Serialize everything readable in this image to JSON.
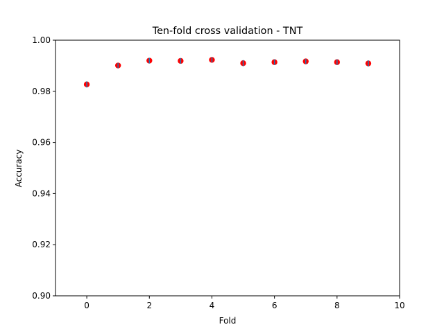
{
  "chart_data": {
    "type": "scatter",
    "title": "Ten-fold cross validation - TNT",
    "xlabel": "Fold",
    "ylabel": "Accuracy",
    "xlim": [
      -1,
      10
    ],
    "ylim": [
      0.9,
      1.0
    ],
    "xticks": [
      0,
      2,
      4,
      6,
      8,
      10
    ],
    "yticks": [
      0.9,
      0.92,
      0.94,
      0.96,
      0.98,
      1.0
    ],
    "xtick_labels": [
      "0",
      "2",
      "4",
      "6",
      "8",
      "10"
    ],
    "ytick_labels": [
      "0.90",
      "0.92",
      "0.94",
      "0.96",
      "0.98",
      "1.00"
    ],
    "x": [
      0,
      1,
      2,
      3,
      4,
      5,
      6,
      7,
      8,
      9
    ],
    "y": [
      0.9827,
      0.9901,
      0.992,
      0.9919,
      0.9923,
      0.991,
      0.9914,
      0.9917,
      0.9914,
      0.9909
    ],
    "yerr": [
      0.0012,
      0.001,
      0.0011,
      0.0011,
      0.001,
      0.0012,
      0.0011,
      0.001,
      0.0011,
      0.0012
    ],
    "grid": false,
    "marker_color": "#ff0000",
    "errorbar_color": "#1f77b4"
  }
}
